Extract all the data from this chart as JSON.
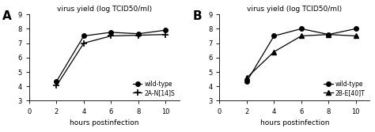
{
  "panel_A": {
    "label": "A",
    "title": "virus yield (log TCID50/ml)",
    "xlabel": "hours postinfection",
    "ylim": [
      3,
      9
    ],
    "yticks": [
      3,
      4,
      5,
      6,
      7,
      8,
      9
    ],
    "xticks": [
      0,
      2,
      4,
      6,
      8,
      10
    ],
    "series": [
      {
        "name": "wild-type",
        "x": [
          2,
          4,
          6,
          8,
          10
        ],
        "y": [
          4.35,
          7.5,
          7.75,
          7.65,
          7.9
        ],
        "marker": "o",
        "markersize": 4,
        "color": "black",
        "linestyle": "-"
      },
      {
        "name": "2A-N[14]S",
        "x": [
          2,
          4,
          6,
          8,
          10
        ],
        "y": [
          4.05,
          7.0,
          7.5,
          7.55,
          7.6
        ],
        "marker": "P",
        "markersize": 5,
        "color": "black",
        "linestyle": "-"
      }
    ]
  },
  "panel_B": {
    "label": "B",
    "title": "virus yield (log TCID50/ml)",
    "xlabel": "hours postinfection",
    "ylim": [
      3,
      9
    ],
    "yticks": [
      3,
      4,
      5,
      6,
      7,
      8,
      9
    ],
    "xticks": [
      0,
      2,
      4,
      6,
      8,
      10
    ],
    "series": [
      {
        "name": "wild-type",
        "x": [
          2,
          4,
          6,
          8,
          10
        ],
        "y": [
          4.35,
          7.5,
          8.0,
          7.6,
          8.0
        ],
        "marker": "o",
        "markersize": 4,
        "color": "black",
        "linestyle": "-"
      },
      {
        "name": "2B-E[40]T",
        "x": [
          2,
          4,
          6,
          8,
          10
        ],
        "y": [
          4.6,
          6.4,
          7.5,
          7.6,
          7.5
        ],
        "marker": "^",
        "markersize": 5,
        "color": "black",
        "linestyle": "-"
      }
    ]
  }
}
